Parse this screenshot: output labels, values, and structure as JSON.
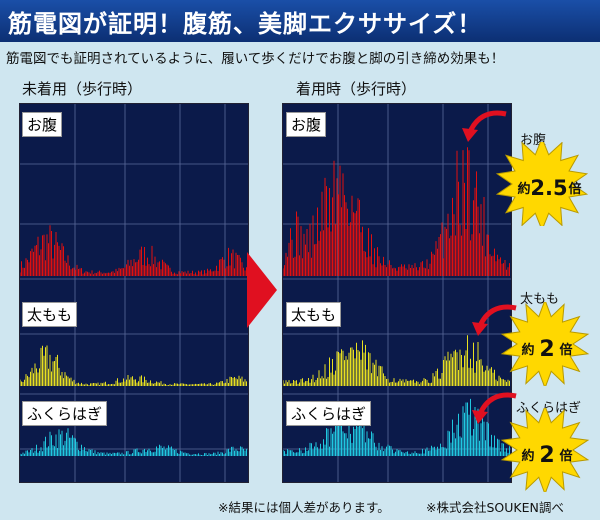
{
  "banner": {
    "title": "筋電図が証明！腹筋、美脚エクササイズ！"
  },
  "subtitle": "筋電図でも証明されているように、履いて歩くだけでお腹と脚の引き締め効果も！",
  "before": {
    "label": "未着用（歩行時）"
  },
  "after": {
    "label": "着用時（歩行時）"
  },
  "segments": [
    "お腹",
    "太もも",
    "ふくらはぎ"
  ],
  "bursts": [
    {
      "part": "お腹",
      "prefix": "約",
      "value": "2.5",
      "suffix": "倍"
    },
    {
      "part": "太もも",
      "prefix": "約",
      "value": "2",
      "suffix": "倍"
    },
    {
      "part": "ふくらはぎ",
      "prefix": "約",
      "value": "2",
      "suffix": "倍"
    }
  ],
  "footnotes": {
    "note1": "※結果には個人差があります。",
    "note2": "※株式会社SOUKEN調べ"
  },
  "colors": {
    "banner": "#1a4fa8",
    "panel": "#0b1a4a",
    "grid": "#5a6a9a",
    "red": "#e01010",
    "yellow": "#e8e020",
    "cyan": "#20c8e0",
    "burst": "#ffd800",
    "arrow": "#e01020"
  }
}
